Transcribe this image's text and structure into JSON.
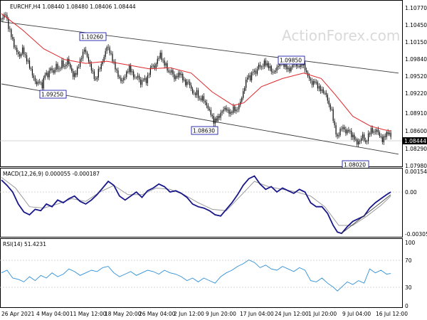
{
  "main": {
    "symbol_label": "EURCHF,H4  1.08440 1.08480 1.08406 1.08444",
    "watermark": "ActionForex.com",
    "yticks": [
      "1.10770",
      "1.10450",
      "1.10150",
      "1.09840",
      "1.09520",
      "1.09220",
      "1.08910",
      "1.08600",
      "1.08290",
      "1.07980"
    ],
    "current_price": "1.08444",
    "annotations": [
      {
        "label": "1.10260"
      },
      {
        "label": "1.09250"
      },
      {
        "label": "1.08630"
      },
      {
        "label": "1.09850"
      },
      {
        "label": "1.08020"
      }
    ]
  },
  "macd": {
    "label": "MACD(12,26,9) 0.000055 -0.000187",
    "yticks": [
      "0.001544",
      "0.00",
      "-0.003054"
    ]
  },
  "rsi": {
    "label": "RSI(14) 51.4231",
    "yticks": [
      "100",
      "70",
      "30",
      "0"
    ]
  },
  "xticks": [
    "26 Apr 2021",
    "4 May 04:00",
    "11 May 12:00",
    "18 May 20:00",
    "26 May 04:00",
    "2 Jun 12:00",
    "9 Jun 20:00",
    "17 Jun 04:00",
    "24 Jun 12:00",
    "1 Jul 20:00",
    "9 Jul 04:00",
    "16 Jul 12:00"
  ],
  "colors": {
    "candle": "#000000",
    "ma": "#e0262a",
    "macd": "#17168a",
    "signal": "#9a9a9a",
    "rsi": "#2f8fd6",
    "box": "#0000a0"
  },
  "chart_data": [
    {
      "type": "candlestick",
      "title": "EURCHF,H4",
      "ylim": [
        1.079,
        1.109
      ],
      "close_path": [
        [
          0,
          1.106
        ],
        [
          6,
          1.107
        ],
        [
          10,
          1.1045
        ],
        [
          14,
          1.103
        ],
        [
          18,
          1.101
        ],
        [
          22,
          1.1
        ],
        [
          26,
          1.099
        ],
        [
          30,
          1.1005
        ],
        [
          34,
          1.099
        ],
        [
          38,
          1.098
        ],
        [
          42,
          1.0965
        ],
        [
          46,
          1.095
        ],
        [
          50,
          1.094
        ],
        [
          54,
          1.0945
        ],
        [
          58,
          1.0935
        ],
        [
          62,
          1.096
        ],
        [
          66,
          1.0955
        ],
        [
          70,
          1.097
        ],
        [
          74,
          1.096
        ],
        [
          78,
          1.0975
        ],
        [
          82,
          1.0965
        ],
        [
          86,
          1.098
        ],
        [
          90,
          1.097
        ],
        [
          94,
          1.0985
        ],
        [
          98,
          1.097
        ],
        [
          102,
          1.0955
        ],
        [
          106,
          1.096
        ],
        [
          110,
          1.0975
        ],
        [
          114,
          1.099
        ],
        [
          118,
          1.1005
        ],
        [
          122,
          1.099
        ],
        [
          126,
          1.0975
        ],
        [
          130,
          1.096
        ],
        [
          134,
          1.0945
        ],
        [
          138,
          1.0965
        ],
        [
          142,
          1.0975
        ],
        [
          146,
          1.099
        ],
        [
          150,
          1.101
        ],
        [
          154,
          1.1
        ],
        [
          158,
          1.0985
        ],
        [
          162,
          1.097
        ],
        [
          166,
          1.0955
        ],
        [
          170,
          1.0945
        ],
        [
          174,
          1.095
        ],
        [
          178,
          1.096
        ],
        [
          182,
          1.097
        ],
        [
          186,
          1.096
        ],
        [
          190,
          1.095
        ],
        [
          194,
          1.0955
        ],
        [
          198,
          1.094
        ],
        [
          202,
          1.095
        ],
        [
          206,
          1.0945
        ],
        [
          210,
          1.096
        ],
        [
          214,
          1.0975
        ],
        [
          218,
          1.097
        ],
        [
          222,
          1.0985
        ],
        [
          226,
          1.0995
        ],
        [
          230,
          1.098
        ],
        [
          234,
          1.0975
        ],
        [
          238,
          1.096
        ],
        [
          242,
          1.0965
        ],
        [
          246,
          1.095
        ],
        [
          250,
          1.0955
        ],
        [
          254,
          1.096
        ],
        [
          258,
          1.095
        ],
        [
          262,
          1.094
        ],
        [
          266,
          1.0945
        ],
        [
          270,
          1.093
        ],
        [
          274,
          1.092
        ],
        [
          278,
          1.0925
        ],
        [
          282,
          1.091
        ],
        [
          286,
          1.0915
        ],
        [
          290,
          1.0905
        ],
        [
          294,
          1.0895
        ],
        [
          298,
          1.0885
        ],
        [
          302,
          1.087
        ],
        [
          306,
          1.0875
        ],
        [
          310,
          1.088
        ],
        [
          314,
          1.089
        ],
        [
          318,
          1.0895
        ],
        [
          322,
          1.089
        ],
        [
          326,
          1.0885
        ],
        [
          330,
          1.0895
        ],
        [
          334,
          1.089
        ],
        [
          338,
          1.09
        ],
        [
          342,
          1.0915
        ],
        [
          346,
          1.0935
        ],
        [
          350,
          1.0955
        ],
        [
          354,
          1.095
        ],
        [
          358,
          1.0965
        ],
        [
          362,
          1.096
        ],
        [
          366,
          1.0975
        ],
        [
          370,
          1.097
        ],
        [
          374,
          1.098
        ],
        [
          378,
          1.0975
        ],
        [
          382,
          1.097
        ],
        [
          386,
          1.096
        ],
        [
          390,
          1.0965
        ],
        [
          394,
          1.0975
        ],
        [
          398,
          1.098
        ],
        [
          402,
          1.0975
        ],
        [
          406,
          1.097
        ],
        [
          410,
          1.0965
        ],
        [
          414,
          1.0975
        ],
        [
          418,
          1.098
        ],
        [
          422,
          1.097
        ],
        [
          426,
          1.098
        ],
        [
          430,
          1.0975
        ],
        [
          434,
          1.096
        ],
        [
          438,
          1.095
        ],
        [
          442,
          1.094
        ],
        [
          446,
          1.0945
        ],
        [
          450,
          1.0935
        ],
        [
          454,
          1.093
        ],
        [
          458,
          1.0925
        ],
        [
          462,
          1.092
        ],
        [
          466,
          1.09
        ],
        [
          470,
          1.089
        ],
        [
          474,
          1.086
        ],
        [
          478,
          1.084
        ],
        [
          482,
          1.0855
        ],
        [
          486,
          1.086
        ],
        [
          490,
          1.085
        ],
        [
          494,
          1.0855
        ],
        [
          498,
          1.0845
        ],
        [
          502,
          1.084
        ],
        [
          506,
          1.083
        ],
        [
          510,
          1.0835
        ],
        [
          514,
          1.0845
        ],
        [
          518,
          1.083
        ],
        [
          522,
          1.0845
        ],
        [
          526,
          1.0855
        ],
        [
          530,
          1.085
        ],
        [
          534,
          1.0855
        ],
        [
          538,
          1.0845
        ],
        [
          542,
          1.0835
        ],
        [
          546,
          1.0845
        ],
        [
          550,
          1.085
        ],
        [
          554,
          1.0844
        ]
      ],
      "ma_path": [
        [
          0,
          1.107
        ],
        [
          30,
          1.104
        ],
        [
          60,
          1.1005
        ],
        [
          90,
          1.0985
        ],
        [
          120,
          1.0978
        ],
        [
          150,
          1.0982
        ],
        [
          180,
          1.0975
        ],
        [
          210,
          1.0968
        ],
        [
          240,
          1.097
        ],
        [
          270,
          1.096
        ],
        [
          300,
          1.0925
        ],
        [
          330,
          1.09
        ],
        [
          345,
          1.0905
        ],
        [
          370,
          1.0935
        ],
        [
          400,
          1.095
        ],
        [
          430,
          1.096
        ],
        [
          455,
          1.095
        ],
        [
          475,
          1.092
        ],
        [
          500,
          1.088
        ],
        [
          525,
          1.0862
        ],
        [
          545,
          1.0855
        ],
        [
          554,
          1.0853
        ]
      ],
      "channel_upper": [
        [
          0,
          1.1055
        ],
        [
          565,
          1.096
        ]
      ],
      "channel_lower": [
        [
          0,
          1.094
        ],
        [
          565,
          1.081
        ]
      ]
    },
    {
      "type": "line",
      "title": "MACD(12,26,9)",
      "ylim": [
        -0.0032,
        0.0017
      ],
      "macd": [
        [
          0,
          0.001
        ],
        [
          8,
          0.0006
        ],
        [
          16,
          0.0001
        ],
        [
          24,
          -0.0008
        ],
        [
          32,
          -0.0014
        ],
        [
          40,
          -0.0016
        ],
        [
          48,
          -0.0012
        ],
        [
          56,
          -0.0013
        ],
        [
          64,
          -0.0008
        ],
        [
          72,
          -0.001
        ],
        [
          80,
          -0.0005
        ],
        [
          88,
          -0.0007
        ],
        [
          96,
          -0.0004
        ],
        [
          104,
          -0.0002
        ],
        [
          112,
          -0.0006
        ],
        [
          120,
          -0.0008
        ],
        [
          128,
          -0.0005
        ],
        [
          136,
          -0.0001
        ],
        [
          144,
          0.0004
        ],
        [
          152,
          0.0009
        ],
        [
          160,
          0.0006
        ],
        [
          168,
          -0.0002
        ],
        [
          176,
          -0.0005
        ],
        [
          184,
          -0.0002
        ],
        [
          192,
          0.0001
        ],
        [
          200,
          -0.0003
        ],
        [
          208,
          0.0002
        ],
        [
          216,
          0.0004
        ],
        [
          224,
          0.0007
        ],
        [
          232,
          0.0005
        ],
        [
          240,
          0.0001
        ],
        [
          248,
          0.0002
        ],
        [
          256,
          0.0
        ],
        [
          264,
          -0.0003
        ],
        [
          272,
          -0.0008
        ],
        [
          280,
          -0.001
        ],
        [
          288,
          -0.0011
        ],
        [
          296,
          -0.0013
        ],
        [
          304,
          -0.0016
        ],
        [
          312,
          -0.0017
        ],
        [
          320,
          -0.0012
        ],
        [
          328,
          -0.0007
        ],
        [
          336,
          -0.0001
        ],
        [
          344,
          0.0006
        ],
        [
          352,
          0.0011
        ],
        [
          360,
          0.0013
        ],
        [
          368,
          0.0007
        ],
        [
          376,
          0.0003
        ],
        [
          384,
          0.0005
        ],
        [
          392,
          0.0001
        ],
        [
          400,
          0.0004
        ],
        [
          408,
          0.0002
        ],
        [
          416,
          -0.0
        ],
        [
          424,
          0.0003
        ],
        [
          432,
          0.0001
        ],
        [
          440,
          -0.0007
        ],
        [
          448,
          -0.001
        ],
        [
          456,
          -0.001
        ],
        [
          464,
          -0.0015
        ],
        [
          472,
          -0.0024
        ],
        [
          478,
          -0.0029
        ],
        [
          484,
          -0.003
        ],
        [
          492,
          -0.0025
        ],
        [
          500,
          -0.0021
        ],
        [
          508,
          -0.0019
        ],
        [
          516,
          -0.0017
        ],
        [
          524,
          -0.0011
        ],
        [
          532,
          -0.0007
        ],
        [
          540,
          -0.0004
        ],
        [
          548,
          -0.0001
        ],
        [
          554,
          0.0001
        ]
      ],
      "signal": [
        [
          0,
          0.0012
        ],
        [
          20,
          0.0004
        ],
        [
          40,
          -0.001
        ],
        [
          60,
          -0.0011
        ],
        [
          80,
          -0.0008
        ],
        [
          100,
          -0.0004
        ],
        [
          120,
          -0.0006
        ],
        [
          140,
          0.0001
        ],
        [
          160,
          0.0006
        ],
        [
          180,
          -0.0001
        ],
        [
          200,
          -0.0001
        ],
        [
          220,
          0.0004
        ],
        [
          240,
          0.0003
        ],
        [
          260,
          -0.0001
        ],
        [
          280,
          -0.0007
        ],
        [
          300,
          -0.0012
        ],
        [
          320,
          -0.0013
        ],
        [
          340,
          -0.0002
        ],
        [
          360,
          0.0009
        ],
        [
          380,
          0.0005
        ],
        [
          400,
          0.0003
        ],
        [
          420,
          0.0001
        ],
        [
          440,
          -0.0002
        ],
        [
          460,
          -0.001
        ],
        [
          480,
          -0.0024
        ],
        [
          500,
          -0.0024
        ],
        [
          520,
          -0.0017
        ],
        [
          540,
          -0.0009
        ],
        [
          554,
          -0.0002
        ]
      ],
      "trendline": [
        [
          484,
          -0.003
        ],
        [
          554,
          -0.0001
        ]
      ]
    },
    {
      "type": "line",
      "title": "RSI(14)",
      "ylim": [
        0,
        100
      ],
      "values": [
        [
          0,
          52
        ],
        [
          8,
          56
        ],
        [
          16,
          44
        ],
        [
          24,
          42
        ],
        [
          32,
          38
        ],
        [
          40,
          46
        ],
        [
          48,
          40
        ],
        [
          56,
          48
        ],
        [
          64,
          44
        ],
        [
          72,
          52
        ],
        [
          80,
          46
        ],
        [
          88,
          50
        ],
        [
          96,
          58
        ],
        [
          104,
          54
        ],
        [
          112,
          48
        ],
        [
          120,
          52
        ],
        [
          128,
          56
        ],
        [
          136,
          54
        ],
        [
          144,
          60
        ],
        [
          152,
          62
        ],
        [
          160,
          52
        ],
        [
          168,
          46
        ],
        [
          176,
          50
        ],
        [
          184,
          54
        ],
        [
          192,
          48
        ],
        [
          200,
          52
        ],
        [
          208,
          56
        ],
        [
          216,
          54
        ],
        [
          224,
          50
        ],
        [
          232,
          56
        ],
        [
          240,
          52
        ],
        [
          248,
          50
        ],
        [
          256,
          46
        ],
        [
          264,
          40
        ],
        [
          272,
          44
        ],
        [
          280,
          38
        ],
        [
          288,
          44
        ],
        [
          296,
          40
        ],
        [
          304,
          36
        ],
        [
          312,
          46
        ],
        [
          320,
          52
        ],
        [
          328,
          56
        ],
        [
          336,
          62
        ],
        [
          344,
          66
        ],
        [
          352,
          72
        ],
        [
          360,
          68
        ],
        [
          368,
          60
        ],
        [
          376,
          64
        ],
        [
          384,
          58
        ],
        [
          392,
          56
        ],
        [
          400,
          62
        ],
        [
          408,
          58
        ],
        [
          416,
          54
        ],
        [
          424,
          60
        ],
        [
          432,
          56
        ],
        [
          440,
          40
        ],
        [
          448,
          38
        ],
        [
          456,
          44
        ],
        [
          464,
          36
        ],
        [
          472,
          30
        ],
        [
          478,
          24
        ],
        [
          484,
          30
        ],
        [
          492,
          38
        ],
        [
          500,
          34
        ],
        [
          508,
          40
        ],
        [
          516,
          36
        ],
        [
          524,
          58
        ],
        [
          532,
          52
        ],
        [
          540,
          56
        ],
        [
          548,
          50
        ],
        [
          554,
          51
        ]
      ]
    }
  ]
}
